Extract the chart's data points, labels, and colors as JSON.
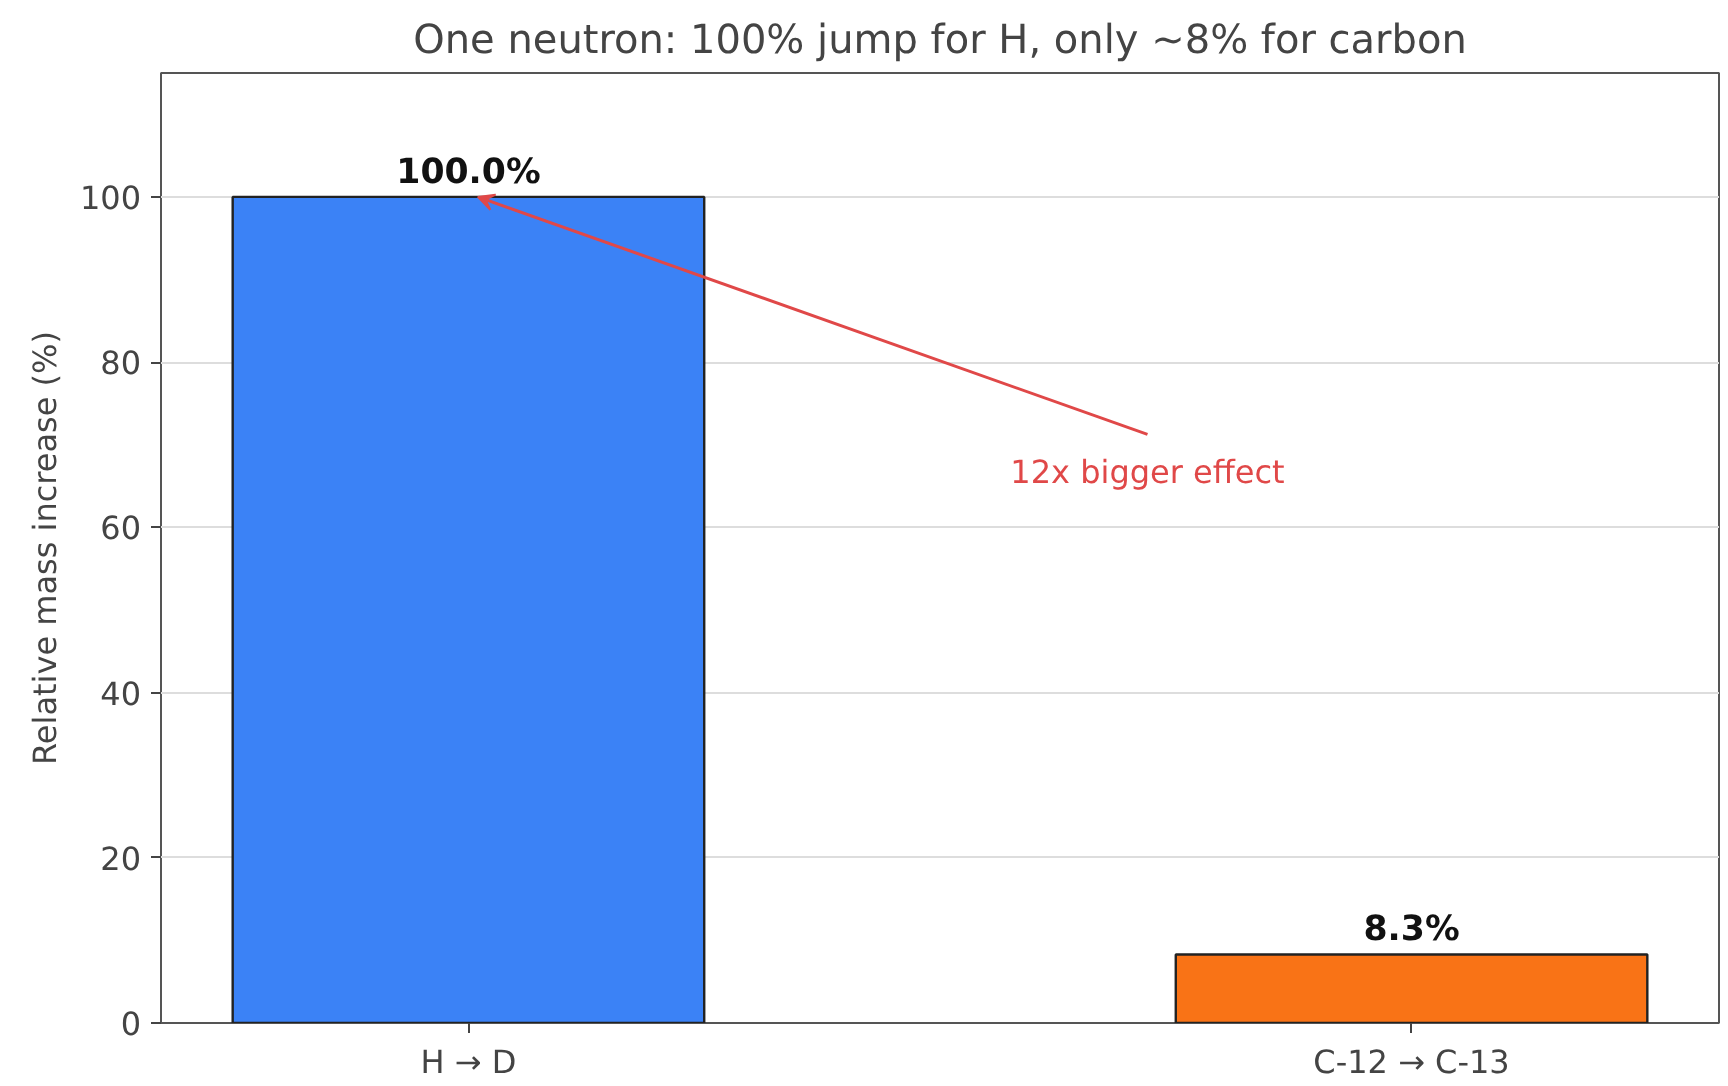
{
  "chart_data": {
    "type": "bar",
    "title": "One neutron: 100% jump for H, only ~8% for carbon",
    "ylabel": "Relative mass increase (%)",
    "categories": [
      "H → D",
      "C-12 → C-13"
    ],
    "values": [
      100,
      8.3
    ],
    "colors": [
      "#3b82f6",
      "#f97316"
    ],
    "value_labels": [
      "100.0%",
      "8.3%"
    ],
    "ylim": [
      0,
      115
    ],
    "yticks": [
      0,
      20,
      40,
      60,
      80,
      100
    ],
    "grid": "y",
    "annotations": [
      {
        "text": "12x bigger effect",
        "x": "H → D",
        "y": 100
      }
    ]
  }
}
